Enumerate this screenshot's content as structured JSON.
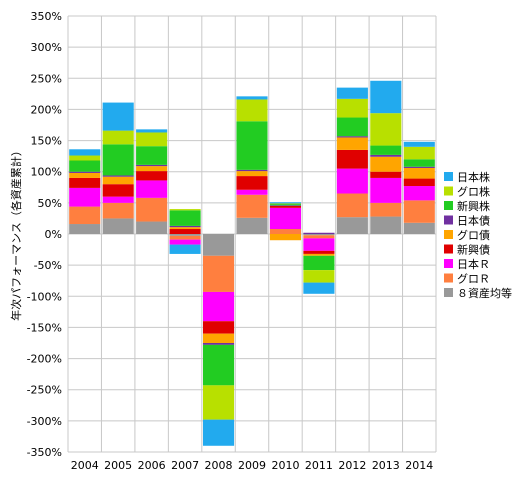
{
  "chart_data": {
    "type": "bar",
    "stacked": true,
    "ylabel": "年次パフォーマンス（各資産累計）",
    "ylim": [
      -350,
      350
    ],
    "ytick_step": 50,
    "ytick_suffix": "%",
    "grid": true,
    "legend_position": "right",
    "categories": [
      "2004",
      "2005",
      "2006",
      "2007",
      "2008",
      "2009",
      "2010",
      "2011",
      "2012",
      "2013",
      "2014"
    ],
    "series": [
      {
        "name": "８資産均等",
        "color": "#999999",
        "values": [
          16,
          25,
          20,
          -3,
          -35,
          26,
          0,
          -2,
          27,
          28,
          18
        ]
      },
      {
        "name": "グロＲ",
        "color": "#FF7F3F",
        "values": [
          28,
          25,
          38,
          -6,
          -58,
          37,
          8,
          -5,
          38,
          22,
          36
        ]
      },
      {
        "name": "日本Ｒ",
        "color": "#FF00FF",
        "values": [
          30,
          10,
          28,
          -8,
          -47,
          8,
          34,
          -20,
          40,
          40,
          23
        ]
      },
      {
        "name": "新興債",
        "color": "#E00000",
        "values": [
          16,
          20,
          15,
          8,
          -20,
          22,
          3,
          -5,
          30,
          10,
          12
        ]
      },
      {
        "name": "グロ債",
        "color": "#FFA500",
        "values": [
          8,
          12,
          8,
          3,
          -15,
          8,
          -10,
          -3,
          20,
          24,
          17
        ]
      },
      {
        "name": "日本債",
        "color": "#7030A0",
        "values": [
          2,
          2,
          2,
          2,
          -3,
          2,
          1,
          2,
          2,
          3,
          2
        ]
      },
      {
        "name": "新興株",
        "color": "#22CC22",
        "values": [
          18,
          50,
          30,
          25,
          -65,
          78,
          2,
          -23,
          30,
          15,
          12
        ]
      },
      {
        "name": "グロ株",
        "color": "#B8E000",
        "values": [
          8,
          22,
          22,
          2,
          -55,
          35,
          1,
          -20,
          30,
          52,
          20
        ]
      },
      {
        "name": "日本株",
        "color": "#22AAEE",
        "values": [
          10,
          45,
          5,
          -15,
          -42,
          5,
          2,
          -18,
          18,
          52,
          8
        ]
      }
    ]
  }
}
